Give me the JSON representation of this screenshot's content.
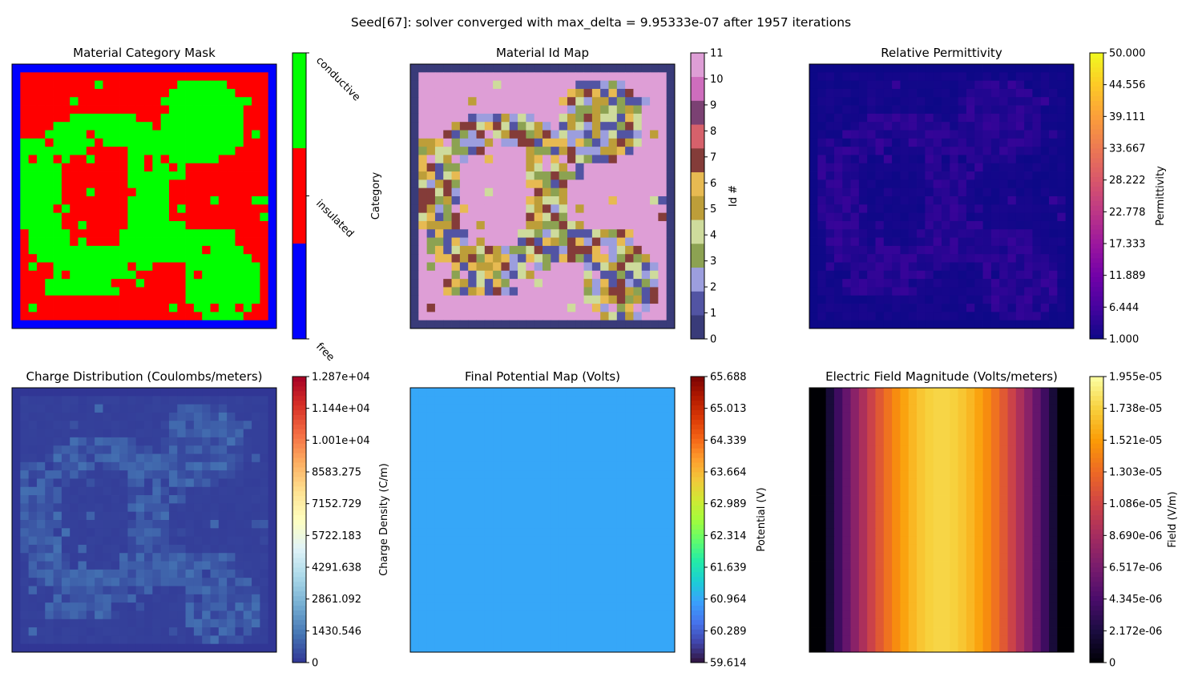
{
  "figure": {
    "suptitle": "Seed[67]: solver converged with max_delta = 9.95333e-07 after 1957 iterations"
  },
  "chart_data": [
    {
      "type": "heatmap",
      "title": "Material Category Mask",
      "colormap": "categorical: free=blue, insulated=red, conductive=green",
      "colorbar_label": "Category",
      "colorbar_ticks": [
        "conductive",
        "insulated",
        "free"
      ],
      "colors": {
        "free": "#0000ff",
        "insulated": "#ff0000",
        "conductive": "#00ff00"
      },
      "grid": "32x32, border cells free, interior mixture of insulated and conductive regions"
    },
    {
      "type": "heatmap",
      "title": "Material Id Map",
      "colormap": "tab20b (12 discrete levels)",
      "colorbar_label": "Id #",
      "colorbar_ticks": [
        "0",
        "1",
        "2",
        "3",
        "4",
        "5",
        "6",
        "7",
        "8",
        "9",
        "10",
        "11"
      ],
      "value_range": [
        0,
        11
      ],
      "palette": [
        "#393b79",
        "#5254a3",
        "#9c9ede",
        "#8ca252",
        "#cedb9c",
        "#bd9e39",
        "#e7ba52",
        "#843c39",
        "#d6616b",
        "#7b4173",
        "#ce6dbd",
        "#de9ed6"
      ]
    },
    {
      "type": "heatmap",
      "title": "Relative Permittivity",
      "colormap": "plasma",
      "colorbar_label": "Permittivity",
      "colorbar_ticks": [
        "1.000",
        "6.444",
        "11.889",
        "17.333",
        "22.778",
        "28.222",
        "33.667",
        "39.111",
        "44.556",
        "50.000"
      ],
      "value_range": [
        1.0,
        50.0
      ]
    },
    {
      "type": "heatmap",
      "title": "Charge Distribution (Coulombs/meters)",
      "colormap": "RdYlBu_r",
      "colorbar_label": "Charge Density (C/m)",
      "colorbar_ticks": [
        "0",
        "1430.546",
        "2861.092",
        "4291.638",
        "5722.183",
        "7152.729",
        "8583.275",
        "1.001e+04",
        "1.144e+04",
        "1.287e+04"
      ],
      "value_range": [
        0,
        12870
      ]
    },
    {
      "type": "heatmap",
      "title": "Final Potential Map (Volts)",
      "colormap": "turbo",
      "colorbar_label": "Potential (V)",
      "colorbar_ticks": [
        "59.614",
        "60.289",
        "60.964",
        "61.639",
        "62.314",
        "62.989",
        "63.664",
        "64.339",
        "65.013",
        "65.688"
      ],
      "value_range": [
        59.614,
        65.688
      ],
      "uniform_value": 60.96
    },
    {
      "type": "heatmap",
      "title": "Electric Field Magnitude (Volts/meters)",
      "colormap": "inferno",
      "colorbar_label": "Field (V/m)",
      "colorbar_ticks": [
        "0",
        "2.172e-06",
        "4.345e-06",
        "6.517e-06",
        "8.690e-06",
        "1.086e-05",
        "1.303e-05",
        "1.521e-05",
        "1.738e-05",
        "1.955e-05"
      ],
      "value_range": [
        0,
        1.955e-05
      ],
      "column_profile": "zero at border columns, rising to peak near center columns, symmetric"
    }
  ]
}
